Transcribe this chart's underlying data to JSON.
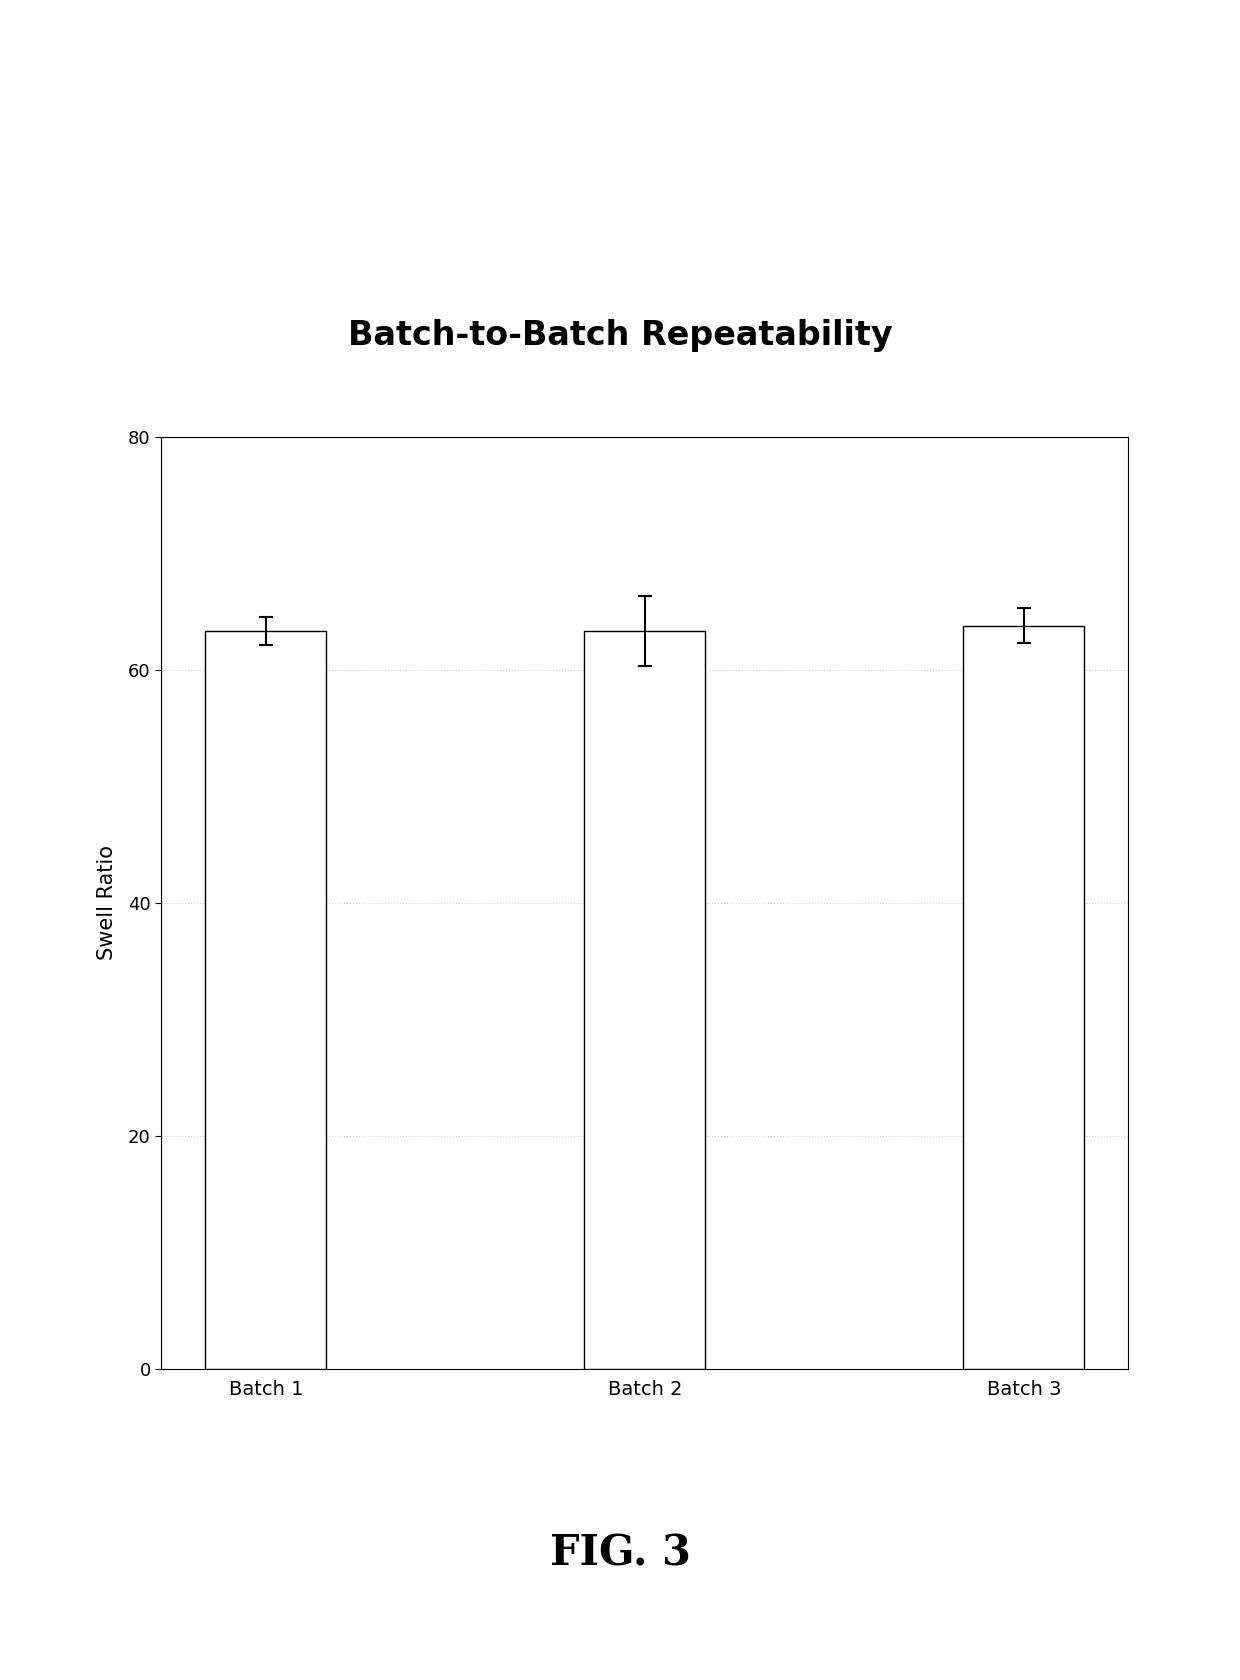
{
  "title": "Batch-to-Batch Repeatability",
  "categories": [
    "Batch 1",
    "Batch 2",
    "Batch 3"
  ],
  "values": [
    63.3,
    63.3,
    63.8
  ],
  "errors": [
    1.2,
    3.0,
    1.5
  ],
  "ylabel": "Swell Ratio",
  "ylim": [
    0,
    80
  ],
  "yticks": [
    0,
    20,
    40,
    60,
    80
  ],
  "bar_color": "#ffffff",
  "bar_edgecolor": "#000000",
  "bar_width": 0.32,
  "title_fontsize": 24,
  "title_fontweight": "bold",
  "axis_label_fontsize": 15,
  "tick_fontsize": 13,
  "xlabel_fontsize": 14,
  "fig_caption": "FIG. 3",
  "fig_caption_fontsize": 30,
  "fig_caption_fontweight": "bold",
  "background_color": "#ffffff",
  "grid_color": "#d0d0d0",
  "grid_linestyle": ":"
}
